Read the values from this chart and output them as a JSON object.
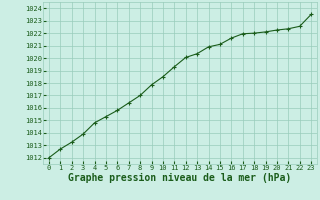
{
  "x": [
    0,
    1,
    2,
    3,
    4,
    5,
    6,
    7,
    8,
    9,
    10,
    11,
    12,
    13,
    14,
    15,
    16,
    17,
    18,
    19,
    20,
    21,
    22,
    23
  ],
  "y": [
    1012.0,
    1012.7,
    1013.25,
    1013.9,
    1014.8,
    1015.3,
    1015.8,
    1016.4,
    1017.0,
    1017.85,
    1018.5,
    1019.3,
    1020.05,
    1020.35,
    1020.9,
    1021.1,
    1021.6,
    1021.95,
    1022.0,
    1022.1,
    1022.25,
    1022.35,
    1022.55,
    1023.5
  ],
  "ylim": [
    1011.5,
    1024.5
  ],
  "xlim": [
    -0.5,
    23.5
  ],
  "yticks": [
    1012,
    1013,
    1014,
    1015,
    1016,
    1017,
    1018,
    1019,
    1020,
    1021,
    1022,
    1023,
    1024
  ],
  "xticks": [
    0,
    1,
    2,
    3,
    4,
    5,
    6,
    7,
    8,
    9,
    10,
    11,
    12,
    13,
    14,
    15,
    16,
    17,
    18,
    19,
    20,
    21,
    22,
    23
  ],
  "line_color": "#1a5c1a",
  "marker": "+",
  "bg_color": "#cceee4",
  "grid_color": "#99ccbb",
  "xlabel": "Graphe pression niveau de la mer (hPa)",
  "xlabel_color": "#1a5c1a",
  "tick_label_color": "#1a5c1a",
  "tick_fontsize": 5.0,
  "xlabel_fontsize": 7.0,
  "linewidth": 0.8,
  "markersize": 3.5,
  "markeredgewidth": 0.8
}
